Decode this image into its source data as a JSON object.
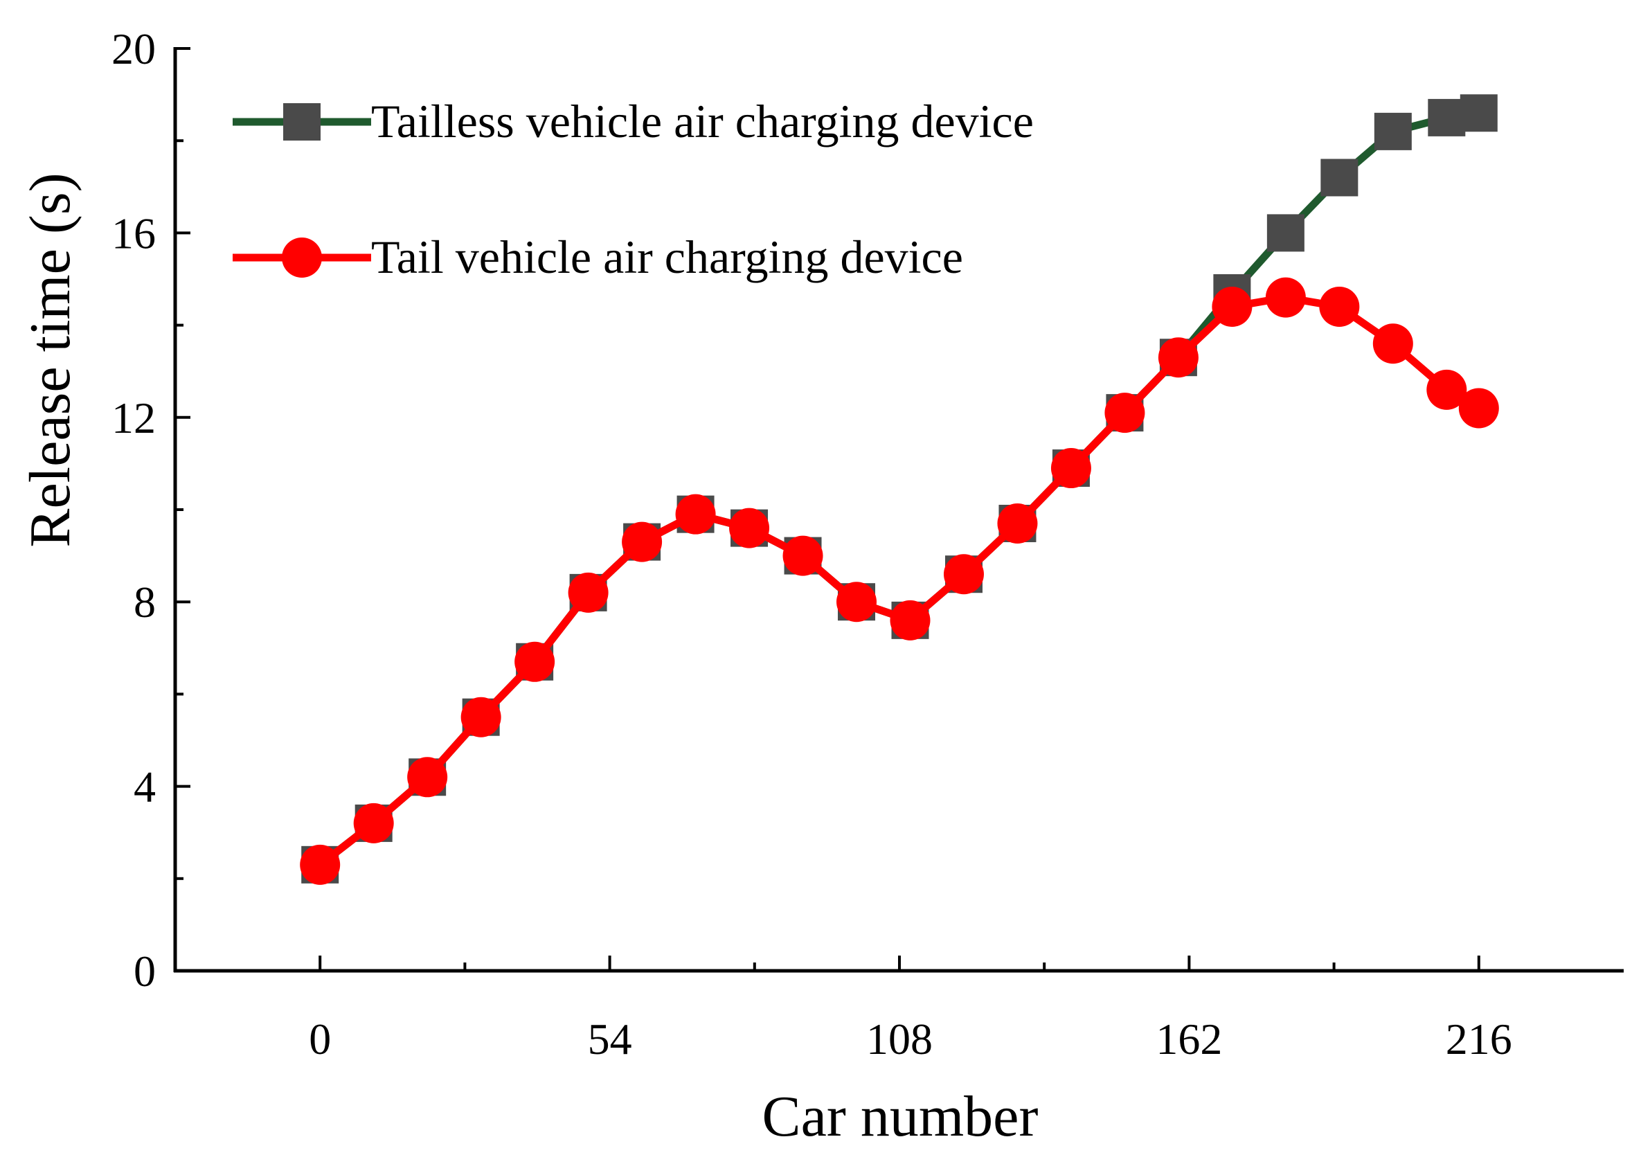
{
  "chart_data": {
    "type": "line",
    "title": "",
    "xlabel": "Car number",
    "ylabel": "Release time (s)",
    "xlim": [
      -27,
      243
    ],
    "ylim": [
      0,
      20
    ],
    "x_ticks": [
      0,
      54,
      108,
      162,
      216
    ],
    "x_tick_labels": [
      "0",
      "54",
      "108",
      "162",
      "216"
    ],
    "x_minor_ticks": [
      27,
      81,
      135,
      189
    ],
    "y_ticks": [
      0,
      4,
      8,
      12,
      16,
      20
    ],
    "y_tick_labels": [
      "0",
      "4",
      "8",
      "12",
      "16",
      "20"
    ],
    "y_minor_ticks": [
      2,
      6,
      10,
      14,
      18
    ],
    "grid": false,
    "legend_position": "top-left",
    "series": [
      {
        "name": "Tailless vehicle air charging device",
        "color": "#1f5a2e",
        "marker": "square",
        "marker_color": "#4a4a4a",
        "x": [
          0,
          10,
          20,
          30,
          40,
          50,
          60,
          70,
          80,
          90,
          100,
          110,
          120,
          130,
          140,
          150,
          160,
          170,
          180,
          190,
          200,
          210,
          216
        ],
        "y": [
          2.3,
          3.2,
          4.2,
          5.5,
          6.7,
          8.2,
          9.3,
          9.9,
          9.6,
          9.0,
          8.0,
          7.6,
          8.6,
          9.7,
          10.9,
          12.1,
          13.3,
          14.7,
          16.0,
          17.2,
          18.2,
          18.5,
          18.6
        ]
      },
      {
        "name": "Tail vehicle air charging device",
        "color": "#ff0000",
        "marker": "circle",
        "marker_color": "#ff0000",
        "x": [
          0,
          10,
          20,
          30,
          40,
          50,
          60,
          70,
          80,
          90,
          100,
          110,
          120,
          130,
          140,
          150,
          160,
          170,
          180,
          190,
          200,
          210,
          216
        ],
        "y": [
          2.3,
          3.2,
          4.2,
          5.5,
          6.7,
          8.2,
          9.3,
          9.9,
          9.6,
          9.0,
          8.0,
          7.6,
          8.6,
          9.7,
          10.9,
          12.1,
          13.3,
          14.4,
          14.6,
          14.4,
          13.6,
          12.6,
          12.2
        ]
      }
    ]
  }
}
